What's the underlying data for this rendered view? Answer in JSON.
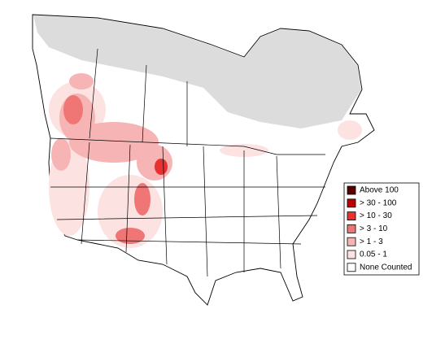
{
  "legend": {
    "items": [
      {
        "label": "Above 100",
        "color": "#5a0000"
      },
      {
        "label": "> 30 - 100",
        "color": "#c00000"
      },
      {
        "label": "> 10 - 30",
        "color": "#e83232"
      },
      {
        "label": "> 3 - 10",
        "color": "#f07575"
      },
      {
        "label": "> 1 - 3",
        "color": "#f7b4b4"
      },
      {
        "label": "0.05 - 1",
        "color": "#fde2e2"
      },
      {
        "label": "None Counted",
        "color": "#ffffff"
      }
    ]
  }
}
